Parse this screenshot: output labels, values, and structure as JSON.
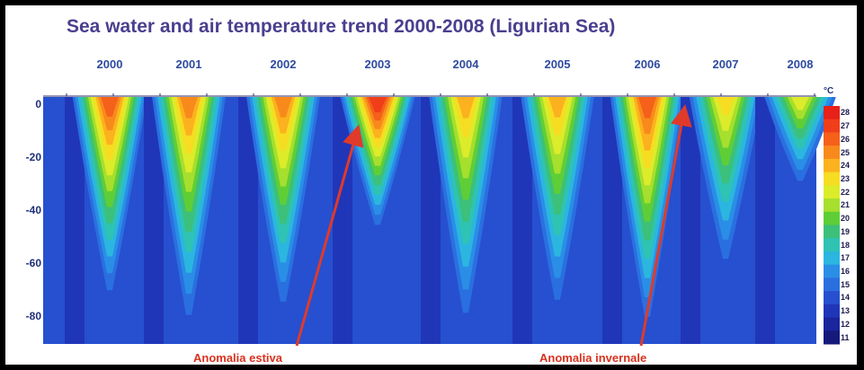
{
  "chart_data": {
    "type": "heatmap",
    "title": "Sea water and air temperature trend 2000-2008 (Ligurian Sea)",
    "x_categories": [
      "2000",
      "2001",
      "2002",
      "2003",
      "2004",
      "2005",
      "2006",
      "2007",
      "2008"
    ],
    "y_ticks": [
      0,
      -20,
      -40,
      -60,
      -80
    ],
    "ylim": [
      -90,
      3
    ],
    "colorbar": {
      "unit": "°C",
      "levels": [
        28,
        27,
        26,
        25,
        24,
        23,
        22,
        21,
        20,
        19,
        18,
        17,
        16,
        15,
        14,
        13,
        12,
        11
      ],
      "colors": [
        "#e8201a",
        "#f03e1a",
        "#f5601a",
        "#f88a1c",
        "#fbb21e",
        "#f6dd22",
        "#dcec2a",
        "#a6df2e",
        "#5fce36",
        "#3cc07a",
        "#2ec3b2",
        "#2bb6e0",
        "#2a8ee6",
        "#2a6fe0",
        "#2650cf",
        "#2036b8",
        "#1b259c",
        "#15197c"
      ]
    },
    "summer_surface_max_by_year": [
      26,
      25,
      25,
      27,
      24,
      24,
      26,
      23,
      22
    ],
    "thermocline_depth_by_year": [
      -70,
      -80,
      -75,
      -45,
      -80,
      -75,
      -80,
      -60,
      -30
    ],
    "annotations": [
      {
        "text": "Anomalia estiva",
        "year": "2003"
      },
      {
        "text": "Anomalia invernale",
        "year": "2006"
      }
    ]
  }
}
